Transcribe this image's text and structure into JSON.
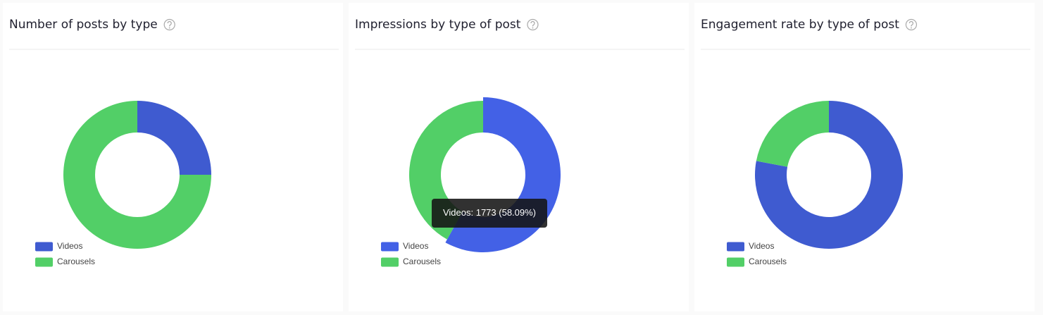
{
  "chart_data": [
    {
      "type": "donut",
      "title": "Number of posts by type",
      "categories": [
        "Videos",
        "Carousels"
      ],
      "colors": [
        "#3f5bd0",
        "#52cf67"
      ],
      "values": [
        25,
        75
      ]
    },
    {
      "type": "donut",
      "title": "Impressions by type of post",
      "categories": [
        "Videos",
        "Carousels"
      ],
      "colors": [
        "#4361e6",
        "#52cf67"
      ],
      "values": [
        1773,
        1279
      ],
      "value_labels": [
        "Videos: 1773 (58.09%)",
        null
      ]
    },
    {
      "type": "donut",
      "title": "Engagement rate by type of post",
      "categories": [
        "Videos",
        "Carousels"
      ],
      "colors": [
        "#3f5bd0",
        "#52cf67"
      ],
      "values": [
        78,
        22
      ]
    }
  ]
}
